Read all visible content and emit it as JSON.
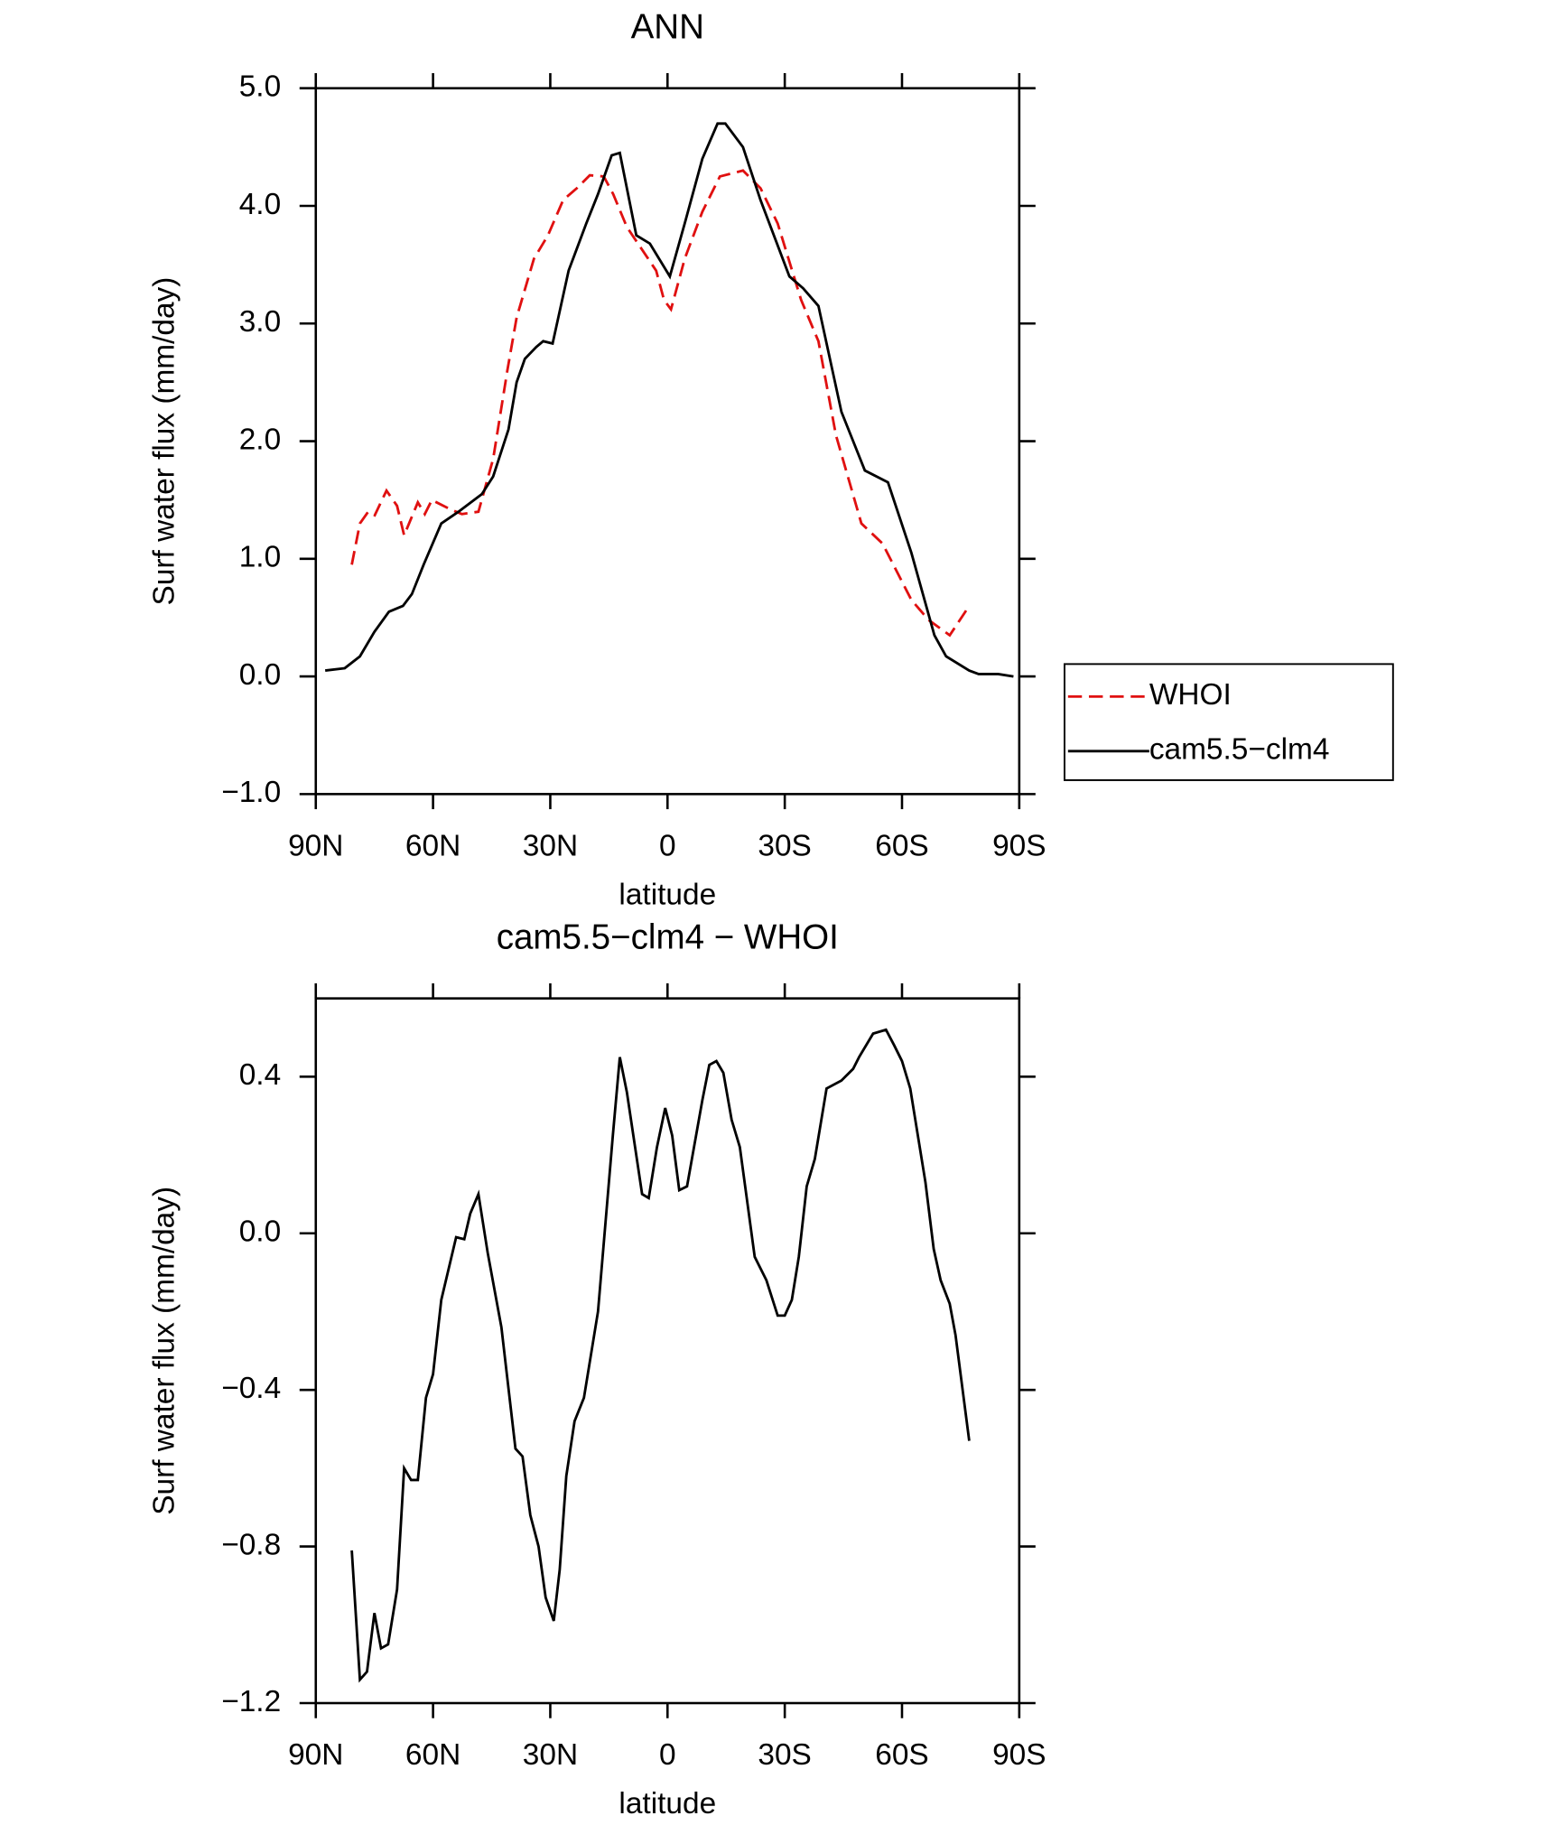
{
  "chart_data": [
    {
      "type": "line",
      "title": "ANN",
      "xlabel": "latitude",
      "ylabel": "Surf water flux (mm/day)",
      "xlim": [
        90,
        -90
      ],
      "xticks": [
        {
          "value": 90,
          "label": "90N"
        },
        {
          "value": 60,
          "label": "60N"
        },
        {
          "value": 30,
          "label": "30N"
        },
        0,
        {
          "value": -30,
          "label": "30S"
        },
        {
          "value": -60,
          "label": "60S"
        },
        {
          "value": -90,
          "label": "90S"
        }
      ],
      "ylim": [
        -1.0,
        5.0
      ],
      "yticks": [
        {
          "value": -1.0,
          "label": "−1.0"
        },
        {
          "value": 0.0,
          "label": "0.0"
        },
        {
          "value": 1.0,
          "label": "1.0"
        },
        {
          "value": 2.0,
          "label": "2.0"
        },
        {
          "value": 3.0,
          "label": "3.0"
        },
        {
          "value": 4.0,
          "label": "4.0"
        },
        {
          "value": 5.0,
          "label": "5.0"
        }
      ],
      "legend": "right",
      "series": [
        {
          "name": "WHOI",
          "color": "#e01010",
          "dash": true,
          "x": [
            80.8,
            78.7,
            76.6,
            74.9,
            71.9,
            69.2,
            67.4,
            63.9,
            62.1,
            60.3,
            55.5,
            52.6,
            48.4,
            44.6,
            41.0,
            38.6,
            34.2,
            30.6,
            26.7,
            23.2,
            19.9,
            16.3,
            13.9,
            10.4,
            2.9,
            0.9,
            -0.9,
            -4.4,
            -8.9,
            -13.4,
            -19.3,
            -23.8,
            -28.2,
            -34.2,
            -38.6,
            -43.1,
            -49.6,
            -55.0,
            -62.4,
            -66.8,
            -72.2,
            -77.2
          ],
          "values": [
            0.95,
            1.3,
            1.4,
            1.37,
            1.58,
            1.45,
            1.2,
            1.48,
            1.38,
            1.5,
            1.42,
            1.38,
            1.4,
            1.85,
            2.6,
            3.05,
            3.55,
            3.75,
            4.05,
            4.15,
            4.26,
            4.25,
            4.1,
            3.82,
            3.45,
            3.2,
            3.12,
            3.55,
            3.95,
            4.25,
            4.3,
            4.15,
            3.85,
            3.2,
            2.85,
            2.05,
            1.3,
            1.13,
            0.65,
            0.48,
            0.35,
            0.6
          ]
        },
        {
          "name": "cam5.5−clm4",
          "color": "#000000",
          "dash": false,
          "x": [
            87.6,
            82.6,
            78.7,
            75.0,
            71.3,
            67.7,
            65.4,
            62.4,
            57.9,
            53.5,
            47.5,
            44.6,
            40.7,
            38.6,
            36.5,
            33.6,
            31.8,
            29.4,
            25.3,
            20.8,
            17.8,
            14.3,
            12.2,
            8.0,
            4.5,
            -0.6,
            -4.4,
            -8.9,
            -12.8,
            -14.8,
            -19.3,
            -23.8,
            -31.2,
            -34.7,
            -38.6,
            -44.5,
            -50.5,
            -56.4,
            -62.4,
            -68.3,
            -71.3,
            -77.2,
            -79.6,
            -84.6,
            -88.5
          ],
          "values": [
            0.05,
            0.07,
            0.17,
            0.38,
            0.55,
            0.6,
            0.7,
            0.95,
            1.3,
            1.4,
            1.55,
            1.7,
            2.1,
            2.5,
            2.7,
            2.8,
            2.85,
            2.83,
            3.45,
            3.85,
            4.1,
            4.43,
            4.45,
            3.75,
            3.68,
            3.4,
            3.85,
            4.4,
            4.7,
            4.7,
            4.5,
            4.05,
            3.4,
            3.3,
            3.15,
            2.25,
            1.75,
            1.65,
            1.05,
            0.35,
            0.17,
            0.05,
            0.02,
            0.02,
            0.0
          ]
        }
      ]
    },
    {
      "type": "line",
      "title": "cam5.5−clm4 − WHOI",
      "xlabel": "latitude",
      "ylabel": "Surf water flux (mm/day)",
      "xlim": [
        90,
        -90
      ],
      "xticks": [
        {
          "value": 90,
          "label": "90N"
        },
        {
          "value": 60,
          "label": "60N"
        },
        {
          "value": 30,
          "label": "30N"
        },
        0,
        {
          "value": -30,
          "label": "30S"
        },
        {
          "value": -60,
          "label": "60S"
        },
        {
          "value": -90,
          "label": "90S"
        }
      ],
      "ylim": [
        -1.2,
        0.6
      ],
      "yticks": [
        {
          "value": -1.2,
          "label": "−1.2"
        },
        {
          "value": -0.8,
          "label": "−0.8"
        },
        {
          "value": -0.4,
          "label": "−0.4"
        },
        {
          "value": 0.0,
          "label": "0.0"
        },
        0.4
      ],
      "color": "#000000",
      "x": [
        80.8,
        78.7,
        76.9,
        75.0,
        73.3,
        71.5,
        69.2,
        67.4,
        65.6,
        63.9,
        61.8,
        60.0,
        57.9,
        54.1,
        52.0,
        50.5,
        48.4,
        46.0,
        42.5,
        38.9,
        37.1,
        35.1,
        33.0,
        31.2,
        29.1,
        27.6,
        25.9,
        23.8,
        21.4,
        17.8,
        14.0,
        12.2,
        10.4,
        6.5,
        4.8,
        2.7,
        0.6,
        -1.2,
        -3.0,
        -5.0,
        -8.9,
        -10.7,
        -12.5,
        -14.3,
        -16.4,
        -18.5,
        -22.3,
        -25.3,
        -28.2,
        -30.0,
        -31.8,
        -33.6,
        -35.6,
        -37.7,
        -40.7,
        -44.5,
        -47.5,
        -49.0,
        -52.6,
        -55.9,
        -58.0,
        -60.0,
        -62.1,
        -63.9,
        -66.0,
        -68.1,
        -69.9,
        -72.2,
        -73.7,
        -77.2
      ],
      "values": [
        -0.81,
        -1.14,
        -1.12,
        -0.97,
        -1.06,
        -1.05,
        -0.91,
        -0.6,
        -0.63,
        -0.63,
        -0.42,
        -0.36,
        -0.17,
        -0.01,
        -0.015,
        0.05,
        0.1,
        -0.05,
        -0.24,
        -0.55,
        -0.57,
        -0.72,
        -0.8,
        -0.93,
        -0.99,
        -0.86,
        -0.62,
        -0.48,
        -0.42,
        -0.2,
        0.25,
        0.45,
        0.36,
        0.1,
        0.09,
        0.22,
        0.32,
        0.25,
        0.11,
        0.12,
        0.34,
        0.43,
        0.44,
        0.41,
        0.29,
        0.22,
        -0.06,
        -0.12,
        -0.21,
        -0.21,
        -0.17,
        -0.06,
        0.12,
        0.19,
        0.37,
        0.39,
        0.42,
        0.45,
        0.51,
        0.52,
        0.48,
        0.44,
        0.37,
        0.26,
        0.13,
        -0.04,
        -0.12,
        -0.18,
        -0.26,
        -0.53
      ]
    }
  ]
}
